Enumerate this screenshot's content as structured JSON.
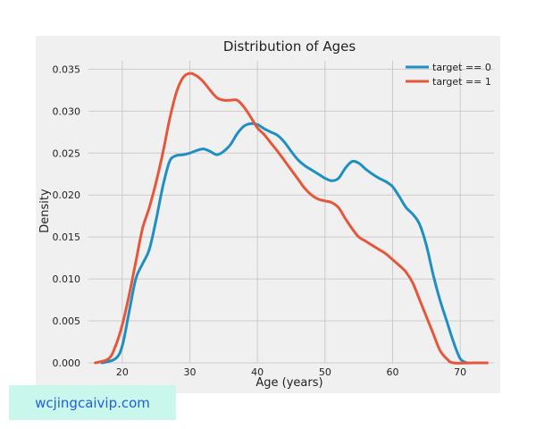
{
  "chart_data": {
    "type": "line",
    "title": "Distribution of Ages",
    "xlabel": "Age (years)",
    "ylabel": "Density",
    "xlim": [
      15,
      75
    ],
    "ylim": [
      0,
      0.036
    ],
    "xticks": [
      20,
      30,
      40,
      50,
      60,
      70
    ],
    "xtick_labels": [
      "20",
      "30",
      "40",
      "50",
      "60",
      "70"
    ],
    "yticks": [
      0,
      0.005,
      0.01,
      0.015,
      0.02,
      0.025,
      0.03,
      0.035
    ],
    "ytick_labels": [
      "0.000",
      "0.005",
      "0.010",
      "0.015",
      "0.020",
      "0.025",
      "0.030",
      "0.035"
    ],
    "grid": true,
    "legend_position": "top-right",
    "series": [
      {
        "name": "target == 0",
        "color": "#1f8fc2",
        "points": [
          [
            17,
            0.0
          ],
          [
            19,
            0.0005
          ],
          [
            20,
            0.002
          ],
          [
            21,
            0.006
          ],
          [
            22,
            0.01
          ],
          [
            23,
            0.0118
          ],
          [
            24,
            0.0135
          ],
          [
            25,
            0.017
          ],
          [
            26,
            0.021
          ],
          [
            27,
            0.024
          ],
          [
            28,
            0.0247
          ],
          [
            29,
            0.0248
          ],
          [
            30,
            0.025
          ],
          [
            31,
            0.0253
          ],
          [
            32,
            0.0255
          ],
          [
            33,
            0.0252
          ],
          [
            34,
            0.0248
          ],
          [
            35,
            0.0252
          ],
          [
            36,
            0.026
          ],
          [
            37,
            0.0273
          ],
          [
            38,
            0.0282
          ],
          [
            39,
            0.0285
          ],
          [
            40,
            0.0284
          ],
          [
            41,
            0.0279
          ],
          [
            42,
            0.0275
          ],
          [
            43,
            0.0271
          ],
          [
            44,
            0.0263
          ],
          [
            45,
            0.0252
          ],
          [
            46,
            0.0242
          ],
          [
            47,
            0.0235
          ],
          [
            48,
            0.023
          ],
          [
            49,
            0.0225
          ],
          [
            50,
            0.022
          ],
          [
            51,
            0.0217
          ],
          [
            52,
            0.022
          ],
          [
            53,
            0.0232
          ],
          [
            54,
            0.024
          ],
          [
            55,
            0.0238
          ],
          [
            56,
            0.0231
          ],
          [
            57,
            0.0225
          ],
          [
            58,
            0.022
          ],
          [
            59,
            0.0216
          ],
          [
            60,
            0.021
          ],
          [
            61,
            0.0198
          ],
          [
            62,
            0.0185
          ],
          [
            63,
            0.0177
          ],
          [
            64,
            0.0165
          ],
          [
            65,
            0.014
          ],
          [
            66,
            0.0105
          ],
          [
            67,
            0.0075
          ],
          [
            68,
            0.005
          ],
          [
            69,
            0.0025
          ],
          [
            70,
            0.0005
          ],
          [
            71,
            0.0
          ]
        ]
      },
      {
        "name": "target == 1",
        "color": "#e5573a",
        "points": [
          [
            16,
            0.0
          ],
          [
            18,
            0.0005
          ],
          [
            19,
            0.002
          ],
          [
            20,
            0.0045
          ],
          [
            21,
            0.008
          ],
          [
            22,
            0.012
          ],
          [
            23,
            0.016
          ],
          [
            24,
            0.0185
          ],
          [
            25,
            0.0215
          ],
          [
            26,
            0.025
          ],
          [
            27,
            0.029
          ],
          [
            28,
            0.0322
          ],
          [
            29,
            0.034
          ],
          [
            30,
            0.0345
          ],
          [
            31,
            0.0342
          ],
          [
            32,
            0.0335
          ],
          [
            33,
            0.0325
          ],
          [
            34,
            0.0316
          ],
          [
            35,
            0.0313
          ],
          [
            36,
            0.0313
          ],
          [
            37,
            0.0313
          ],
          [
            38,
            0.0305
          ],
          [
            39,
            0.0293
          ],
          [
            40,
            0.028
          ],
          [
            41,
            0.0272
          ],
          [
            42,
            0.0262
          ],
          [
            43,
            0.0252
          ],
          [
            44,
            0.0241
          ],
          [
            45,
            0.023
          ],
          [
            46,
            0.0219
          ],
          [
            47,
            0.0208
          ],
          [
            48,
            0.02
          ],
          [
            49,
            0.0195
          ],
          [
            50,
            0.0193
          ],
          [
            51,
            0.0191
          ],
          [
            52,
            0.0185
          ],
          [
            53,
            0.0172
          ],
          [
            54,
            0.016
          ],
          [
            55,
            0.015
          ],
          [
            56,
            0.0145
          ],
          [
            57,
            0.014
          ],
          [
            58,
            0.0135
          ],
          [
            59,
            0.013
          ],
          [
            60,
            0.0123
          ],
          [
            61,
            0.0116
          ],
          [
            62,
            0.0108
          ],
          [
            63,
            0.0095
          ],
          [
            64,
            0.0075
          ],
          [
            65,
            0.0055
          ],
          [
            66,
            0.0035
          ],
          [
            67,
            0.0015
          ],
          [
            68,
            0.0005
          ],
          [
            69,
            0.0
          ],
          [
            72,
            0.0
          ],
          [
            74,
            0.0
          ]
        ]
      }
    ]
  },
  "watermark": {
    "text": "wcjingcaivip.com"
  }
}
